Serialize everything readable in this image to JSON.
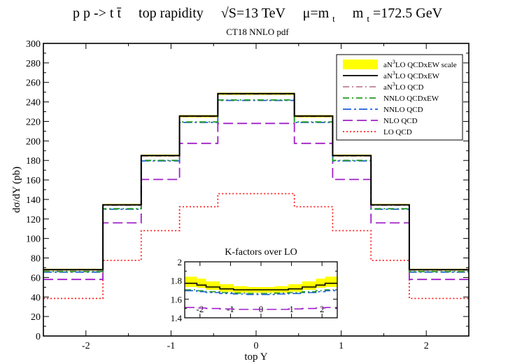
{
  "chart_data": [
    {
      "type": "line",
      "style": "histogram",
      "title_parts": {
        "process": "p p -> t t̄",
        "observable": "top rapidity",
        "energy": "√S=13 TeV",
        "scale": "μ=m",
        "scale_sub": "t",
        "mass": "m",
        "mass_sub": "t",
        "mass_value": "=172.5 GeV"
      },
      "subtitle": "CT18 NNLO pdf",
      "xlabel": "top Y",
      "ylabel": "dσ/dY (pb)",
      "xlim": [
        -2.5,
        2.5
      ],
      "ylim": [
        0,
        300
      ],
      "xticks": [
        -2,
        -1,
        0,
        1,
        2
      ],
      "yticks": [
        0,
        20,
        40,
        60,
        80,
        100,
        120,
        140,
        160,
        180,
        200,
        220,
        240,
        260,
        280,
        300
      ],
      "bin_edges": [
        -2.5,
        -1.8,
        -1.35,
        -0.9,
        -0.45,
        0.45,
        0.9,
        1.35,
        1.8,
        2.5
      ],
      "legend_position": "top-right",
      "scale_band": {
        "name": "aN3LO QCDxEW scale",
        "color": "#ffff00",
        "lower": [
          67,
          134,
          184,
          224,
          247,
          224,
          184,
          134,
          67
        ],
        "upper": [
          69,
          135.5,
          186,
          226.5,
          249.5,
          226.5,
          186,
          135.5,
          69
        ]
      },
      "series": [
        {
          "name": "aN3LO QCDxEW",
          "color": "#000000",
          "dash": "solid",
          "values": [
            68,
            134.5,
            185,
            225.5,
            248.5,
            225.5,
            185,
            134.5,
            68
          ]
        },
        {
          "name": "aN3LO QCD",
          "color": "#c08090",
          "dash": "dashdot",
          "values": [
            67.5,
            134,
            184.5,
            225,
            248,
            225,
            184.5,
            134,
            67.5
          ]
        },
        {
          "name": "NNLO QCDxEW",
          "color": "#229922",
          "dash": "dashdot",
          "values": [
            66,
            130.5,
            180,
            219.5,
            242,
            219.5,
            180,
            130.5,
            66
          ]
        },
        {
          "name": "NNLO QCD",
          "color": "#1f5fdc",
          "dash": "dashdotlong",
          "values": [
            65.5,
            130,
            179.5,
            219,
            241.5,
            219,
            179.5,
            130,
            65.5
          ]
        },
        {
          "name": "NLO QCD",
          "color": "#a020c8",
          "dash": "dashed",
          "values": [
            58,
            116,
            160.5,
            197.5,
            218,
            197.5,
            160.5,
            116,
            58
          ]
        },
        {
          "name": "LO QCD",
          "color": "#ff2020",
          "dash": "dotted",
          "values": [
            38.5,
            77.5,
            108,
            132.5,
            146,
            132.5,
            108,
            77.5,
            38.5
          ]
        }
      ]
    },
    {
      "type": "line",
      "style": "histogram",
      "title": "K-factors over LO",
      "xlim": [
        -2.5,
        2.5
      ],
      "ylim": [
        1.4,
        2.0
      ],
      "xticks": [
        -2,
        -1,
        0,
        1,
        2
      ],
      "yticks": [
        1.4,
        1.6,
        1.8,
        2.0
      ],
      "ytick_labels": [
        "1.4",
        "1.6",
        "1.8",
        "2"
      ],
      "bin_edges": [
        -2.5,
        -2.1,
        -1.8,
        -1.35,
        -0.9,
        -0.45,
        0.45,
        0.9,
        1.35,
        1.8,
        2.1,
        2.5
      ],
      "scale_band": {
        "lower": [
          1.73,
          1.72,
          1.7,
          1.68,
          1.67,
          1.67,
          1.67,
          1.68,
          1.7,
          1.72,
          1.73
        ],
        "upper": [
          1.84,
          1.82,
          1.79,
          1.76,
          1.74,
          1.73,
          1.74,
          1.76,
          1.79,
          1.82,
          1.84
        ]
      },
      "series": [
        {
          "name": "aN3LO QCDxEW",
          "color": "#000000",
          "dash": "solid",
          "values": [
            1.77,
            1.75,
            1.73,
            1.71,
            1.7,
            1.7,
            1.7,
            1.71,
            1.73,
            1.75,
            1.77
          ]
        },
        {
          "name": "NNLO QCDxEW",
          "color": "#229922",
          "dash": "dashdot",
          "values": [
            1.7,
            1.69,
            1.68,
            1.67,
            1.665,
            1.66,
            1.665,
            1.67,
            1.68,
            1.69,
            1.7
          ]
        },
        {
          "name": "NNLO QCD",
          "color": "#1f5fdc",
          "dash": "dashdotlong",
          "values": [
            1.69,
            1.68,
            1.67,
            1.66,
            1.655,
            1.65,
            1.655,
            1.66,
            1.67,
            1.68,
            1.69
          ]
        },
        {
          "name": "NLO QCD",
          "color": "#a020c8",
          "dash": "dashed",
          "values": [
            1.51,
            1.505,
            1.5,
            1.495,
            1.49,
            1.49,
            1.49,
            1.495,
            1.5,
            1.505,
            1.51
          ]
        }
      ]
    }
  ]
}
